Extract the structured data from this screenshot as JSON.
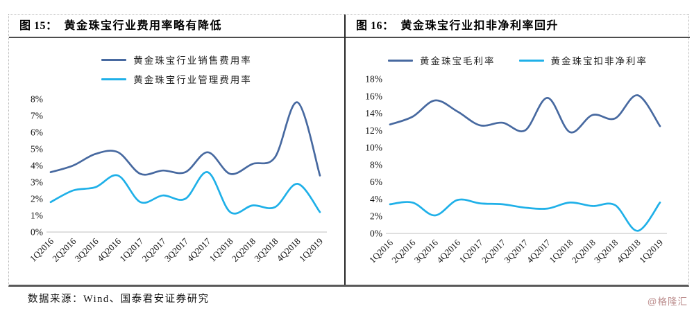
{
  "footer": {
    "source": "数据来源：Wind、国泰君安证券研究",
    "watermark": "@格隆汇"
  },
  "colors": {
    "series_dark_blue": "#4769a0",
    "series_cyan": "#1fb0e8",
    "axis_line": "#cccccc"
  },
  "chart_data": [
    {
      "type": "line",
      "title_label": "图 15：",
      "title": "黄金珠宝行业费用率略有降低",
      "categories": [
        "1Q2016",
        "2Q2016",
        "3Q2016",
        "4Q2016",
        "1Q2017",
        "2Q2017",
        "3Q2017",
        "4Q2017",
        "1Q2018",
        "2Q2018",
        "3Q2018",
        "4Q2018",
        "1Q2019"
      ],
      "series": [
        {
          "name": "黄金珠宝行业销售费用率",
          "color": "#4769a0",
          "values": [
            3.6,
            4.0,
            4.7,
            4.8,
            3.5,
            3.7,
            3.6,
            4.8,
            3.5,
            4.1,
            4.5,
            7.8,
            3.4
          ]
        },
        {
          "name": "黄金珠宝行业管理费用率",
          "color": "#1fb0e8",
          "values": [
            1.8,
            2.5,
            2.7,
            3.4,
            1.8,
            2.2,
            2.0,
            3.6,
            1.2,
            1.6,
            1.5,
            2.9,
            1.2
          ]
        }
      ],
      "ylim": [
        0,
        8
      ],
      "ytick_step": 1,
      "ytick_labels": [
        "0%",
        "1%",
        "2%",
        "3%",
        "4%",
        "5%",
        "6%",
        "7%",
        "8%"
      ],
      "xlabel": "",
      "ylabel": "",
      "grid": false,
      "legend_position": "top-center",
      "legend_layout": "column"
    },
    {
      "type": "line",
      "title_label": "图 16：",
      "title": "黄金珠宝行业扣非净利率回升",
      "categories": [
        "1Q2016",
        "2Q2016",
        "3Q2016",
        "4Q2016",
        "1Q2017",
        "2Q2017",
        "3Q2017",
        "4Q2017",
        "1Q2018",
        "2Q2018",
        "3Q2018",
        "4Q2018",
        "1Q2019"
      ],
      "series": [
        {
          "name": "黄金珠宝毛利率",
          "color": "#4769a0",
          "values": [
            12.7,
            13.6,
            15.5,
            14.2,
            12.6,
            12.9,
            12.0,
            15.8,
            11.8,
            13.8,
            13.4,
            16.1,
            12.5
          ]
        },
        {
          "name": "黄金珠宝扣非净利率",
          "color": "#1fb0e8",
          "values": [
            3.4,
            3.6,
            2.1,
            3.9,
            3.5,
            3.4,
            3.0,
            2.9,
            3.6,
            3.2,
            3.3,
            0.3,
            3.6
          ]
        }
      ],
      "ylim": [
        0,
        18
      ],
      "ytick_step": 2,
      "ytick_labels": [
        "0%",
        "2%",
        "4%",
        "6%",
        "8%",
        "10%",
        "12%",
        "14%",
        "16%",
        "18%"
      ],
      "xlabel": "",
      "ylabel": "",
      "grid": false,
      "legend_position": "top-center",
      "legend_layout": "row"
    }
  ]
}
